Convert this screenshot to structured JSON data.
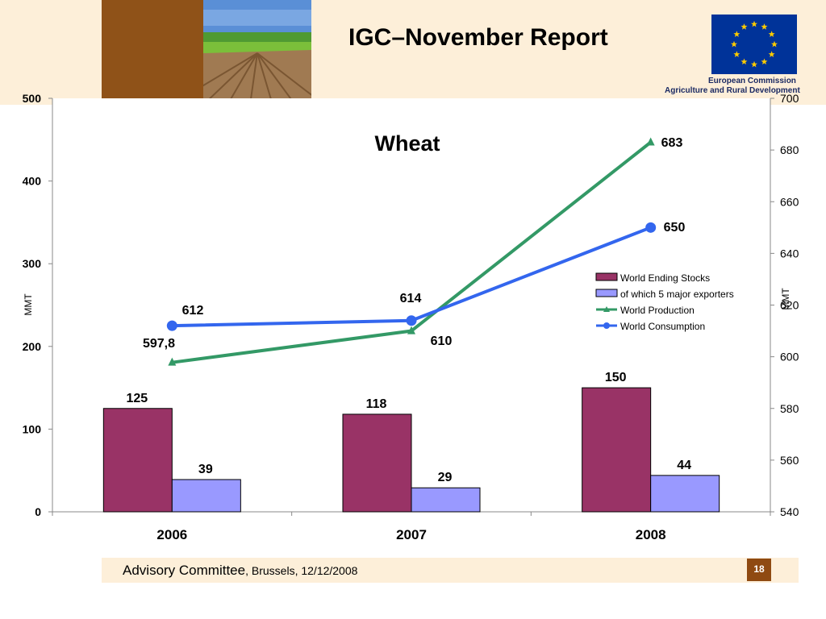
{
  "header": {
    "title": "IGC–November Report"
  },
  "logo": {
    "line1": "European Commission",
    "line2": "Agriculture and Rural Development",
    "star_color": "#ffcc00",
    "flag_color": "#003399"
  },
  "footer": {
    "committee": "Advisory Committee",
    "place_date": ", Brussels, 12/12/2008",
    "page_number": "18"
  },
  "colors": {
    "accent_band": "#fdefd9",
    "brown": "#8f5218",
    "ending_stocks": "#993366",
    "major_exporters": "#9999ff",
    "production": "#339966",
    "consumption": "#3366ee"
  },
  "chart_data": {
    "type": "bar",
    "title": "Wheat",
    "categories": [
      "2006",
      "2007",
      "2008"
    ],
    "ylabel": "MMT",
    "y2label": "MMT",
    "ylim": [
      0,
      500
    ],
    "y2lim": [
      540,
      700
    ],
    "yticks": [
      "0",
      "100",
      "200",
      "300",
      "400",
      "500"
    ],
    "y2ticks": [
      "540",
      "560",
      "580",
      "600",
      "620",
      "640",
      "660",
      "680",
      "700"
    ],
    "series": [
      {
        "name": "World Ending Stocks",
        "type": "bar",
        "axis": "left",
        "values": [
          125,
          118,
          150
        ],
        "labels": [
          "125",
          "118",
          "150"
        ],
        "color": "#993366"
      },
      {
        "name": "of which 5 major exporters",
        "type": "bar",
        "axis": "left",
        "values": [
          39,
          29,
          44
        ],
        "labels": [
          "39",
          "29",
          "44"
        ],
        "color": "#9999ff"
      },
      {
        "name": "World Production",
        "type": "line",
        "marker": "triangle",
        "axis": "right",
        "values": [
          597.8,
          610,
          683
        ],
        "labels": [
          "597,8",
          "610",
          "683"
        ],
        "color": "#339966"
      },
      {
        "name": "World Consumption",
        "type": "line",
        "marker": "circle",
        "axis": "right",
        "values": [
          612,
          614,
          650
        ],
        "labels": [
          "612",
          "614",
          "650"
        ],
        "color": "#3366ee"
      }
    ],
    "grid": false,
    "legend_position": "right"
  }
}
